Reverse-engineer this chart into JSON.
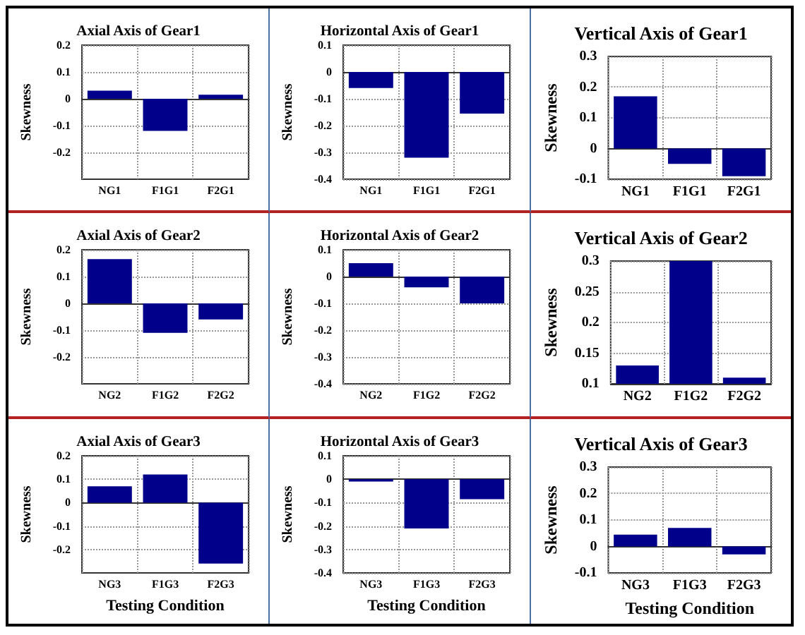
{
  "chart_data": [
    {
      "type": "bar",
      "title": "Axial Axis of Gear1",
      "ylabel": "Skewness",
      "categories": [
        "NG1",
        "F1G1",
        "F2G1"
      ],
      "values": [
        0.03,
        -0.12,
        0.015
      ],
      "color": "#00008b",
      "ylim": [
        -0.3,
        0.2
      ],
      "yticks": [
        -0.2,
        -0.1,
        0,
        0.1,
        0.2
      ],
      "grid": true
    },
    {
      "type": "bar",
      "title": "Horizontal Axis of Gear1",
      "ylabel": "Skewness",
      "categories": [
        "NG1",
        "F1G1",
        "F2G1"
      ],
      "values": [
        -0.06,
        -0.32,
        -0.155
      ],
      "color": "#00008b",
      "ylim": [
        -0.4,
        0.1
      ],
      "yticks": [
        -0.4,
        -0.3,
        -0.2,
        -0.1,
        0,
        0.1
      ],
      "grid": true
    },
    {
      "type": "bar",
      "title": "Vertical Axis of Gear1",
      "ylabel": "Skewness",
      "categories": [
        "NG1",
        "F1G1",
        "F2G1"
      ],
      "values": [
        0.17,
        -0.05,
        -0.09
      ],
      "color": "#00008b",
      "ylim": [
        -0.1,
        0.3
      ],
      "yticks": [
        -0.1,
        0,
        0.1,
        0.2,
        0.3
      ],
      "grid": true
    },
    {
      "type": "bar",
      "title": "Axial Axis of Gear2",
      "ylabel": "Skewness",
      "categories": [
        "NG2",
        "F1G2",
        "F2G2"
      ],
      "values": [
        0.165,
        -0.11,
        -0.06
      ],
      "color": "#00008b",
      "ylim": [
        -0.3,
        0.2
      ],
      "yticks": [
        -0.2,
        -0.1,
        0,
        0.1,
        0.2
      ],
      "grid": true
    },
    {
      "type": "bar",
      "title": "Horizontal Axis of Gear2",
      "ylabel": "Skewness",
      "categories": [
        "NG2",
        "F1G2",
        "F2G2"
      ],
      "values": [
        0.05,
        -0.04,
        -0.1
      ],
      "color": "#00008b",
      "ylim": [
        -0.4,
        0.1
      ],
      "yticks": [
        -0.4,
        -0.3,
        -0.2,
        -0.1,
        0,
        0.1
      ],
      "grid": true
    },
    {
      "type": "bar",
      "title": "Vertical Axis of Gear2",
      "ylabel": "Skewness",
      "categories": [
        "NG2",
        "F1G2",
        "F2G2"
      ],
      "values": [
        0.13,
        0.3,
        0.11
      ],
      "color": "#00008b",
      "ylim": [
        0.1,
        0.3
      ],
      "yticks": [
        0.1,
        0.15,
        0.2,
        0.25,
        0.3
      ],
      "grid": true
    },
    {
      "type": "bar",
      "title": "Axial Axis of Gear3",
      "xlabel": "Testing Condition",
      "ylabel": "Skewness",
      "categories": [
        "NG3",
        "F1G3",
        "F2G3"
      ],
      "values": [
        0.07,
        0.12,
        -0.26
      ],
      "color": "#00008b",
      "ylim": [
        -0.3,
        0.2
      ],
      "yticks": [
        -0.2,
        -0.1,
        0,
        0.1,
        0.2
      ],
      "grid": true
    },
    {
      "type": "bar",
      "title": "Horizontal Axis of Gear3",
      "xlabel": "Testing Condition",
      "ylabel": "Skewness",
      "categories": [
        "NG3",
        "F1G3",
        "F2G3"
      ],
      "values": [
        -0.01,
        -0.21,
        -0.085
      ],
      "color": "#00008b",
      "ylim": [
        -0.4,
        0.1
      ],
      "yticks": [
        -0.4,
        -0.3,
        -0.2,
        -0.1,
        0,
        0.1
      ],
      "grid": true
    },
    {
      "type": "bar",
      "title": "Vertical Axis of Gear3",
      "xlabel": "Testing Condition",
      "ylabel": "Skewness",
      "categories": [
        "NG3",
        "F1G3",
        "F2G3"
      ],
      "values": [
        0.045,
        0.07,
        -0.03
      ],
      "color": "#00008b",
      "ylim": [
        -0.1,
        0.3
      ],
      "yticks": [
        -0.1,
        0,
        0.1,
        0.2,
        0.3
      ],
      "grid": true
    }
  ]
}
